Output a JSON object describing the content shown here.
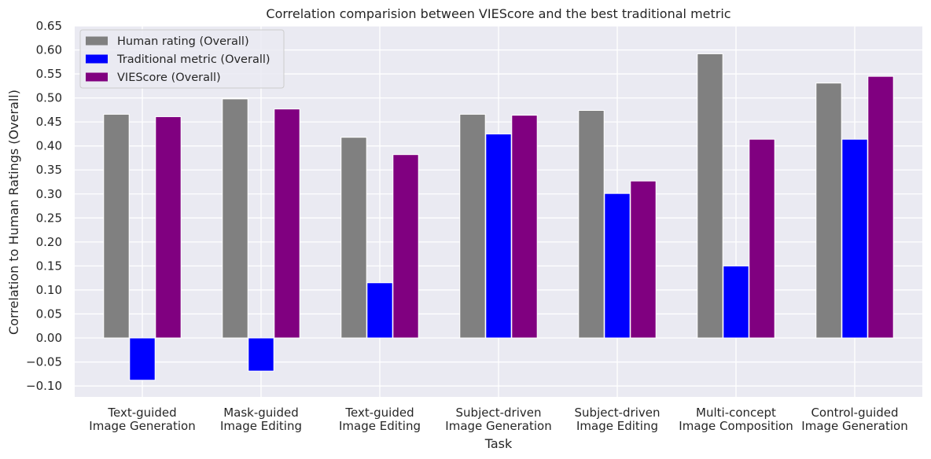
{
  "chart_data": {
    "type": "bar",
    "title": "Correlation comparision between VIEScore and the best traditional metric",
    "xlabel": "Task",
    "ylabel": "Correlation to Human Ratings (Overall)",
    "ylim": [
      -0.12,
      0.65
    ],
    "yticks": [
      "0.65",
      "0.60",
      "0.55",
      "0.50",
      "0.45",
      "0.40",
      "0.35",
      "0.30",
      "0.25",
      "0.20",
      "0.15",
      "0.10",
      "0.05",
      "0.00",
      "−0.05",
      "−0.10"
    ],
    "ytick_values": [
      0.65,
      0.6,
      0.55,
      0.5,
      0.45,
      0.4,
      0.35,
      0.3,
      0.25,
      0.2,
      0.15,
      0.1,
      0.05,
      0.0,
      -0.05,
      -0.1
    ],
    "categories": [
      [
        "Text-guided",
        "Image Generation"
      ],
      [
        "Mask-guided",
        "Image Editing"
      ],
      [
        "Text-guided",
        "Image Editing"
      ],
      [
        "Subject-driven",
        "Image Generation"
      ],
      [
        "Subject-driven",
        "Image Editing"
      ],
      [
        "Multi-concept",
        "Image Composition"
      ],
      [
        "Control-guided",
        "Image Generation"
      ]
    ],
    "series": [
      {
        "name": "Human rating (Overall)",
        "color": "#808080",
        "values": [
          0.466,
          0.498,
          0.418,
          0.466,
          0.474,
          0.592,
          0.531
        ]
      },
      {
        "name": "Traditional metric (Overall)",
        "color": "#0000ff",
        "values": [
          -0.088,
          -0.069,
          0.115,
          0.425,
          0.301,
          0.15,
          0.414
        ]
      },
      {
        "name": "VIEScore (Overall)",
        "color": "#800080",
        "values": [
          0.461,
          0.477,
          0.382,
          0.464,
          0.327,
          0.414,
          0.545
        ]
      }
    ],
    "grid": true,
    "legend": "top-left",
    "background": "#eaeaf2"
  }
}
